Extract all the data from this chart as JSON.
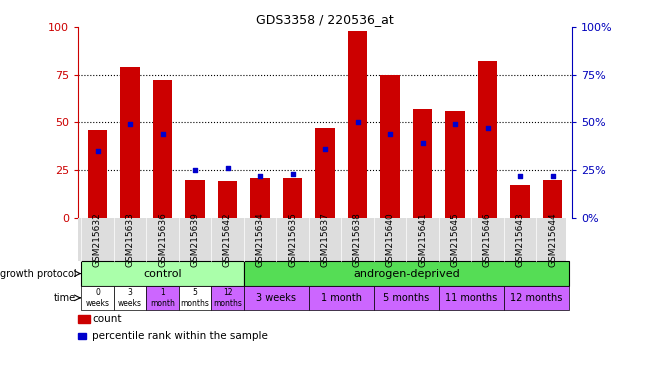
{
  "title": "GDS3358 / 220536_at",
  "samples": [
    "GSM215632",
    "GSM215633",
    "GSM215636",
    "GSM215639",
    "GSM215642",
    "GSM215634",
    "GSM215635",
    "GSM215637",
    "GSM215638",
    "GSM215640",
    "GSM215641",
    "GSM215645",
    "GSM215646",
    "GSM215643",
    "GSM215644"
  ],
  "red_values": [
    46,
    79,
    72,
    20,
    19,
    21,
    21,
    47,
    98,
    75,
    57,
    56,
    82,
    17,
    20
  ],
  "blue_values": [
    35,
    49,
    44,
    25,
    26,
    22,
    23,
    36,
    50,
    44,
    39,
    49,
    47,
    22,
    22
  ],
  "ylim": [
    0,
    100
  ],
  "yticks": [
    0,
    25,
    50,
    75,
    100
  ],
  "bar_color": "#CC0000",
  "dot_color": "#0000CC",
  "left_axis_color": "#CC0000",
  "right_axis_color": "#0000BB",
  "title_color": "#000000",
  "control_color": "#AAFFAA",
  "androgen_color": "#55DD55",
  "sample_bg_color": "#DDDDDD",
  "time_ctrl_colors": [
    "#ffffff",
    "#ffffff",
    "#CC66FF",
    "#ffffff",
    "#CC66FF"
  ],
  "time_androgen_color": "#CC66FF",
  "control_samples_count": 5,
  "androgen_samples_count": 10,
  "time_ctrl_labels": [
    "0\nweeks",
    "3\nweeks",
    "1\nmonth",
    "5\nmonths",
    "12\nmonths"
  ],
  "time_androgen_labels": [
    "3 weeks",
    "1 month",
    "5 months",
    "11 months",
    "12 months"
  ],
  "legend_red": "count",
  "legend_blue": "percentile rank within the sample",
  "growth_protocol_label": "growth protocol",
  "time_label": "time"
}
